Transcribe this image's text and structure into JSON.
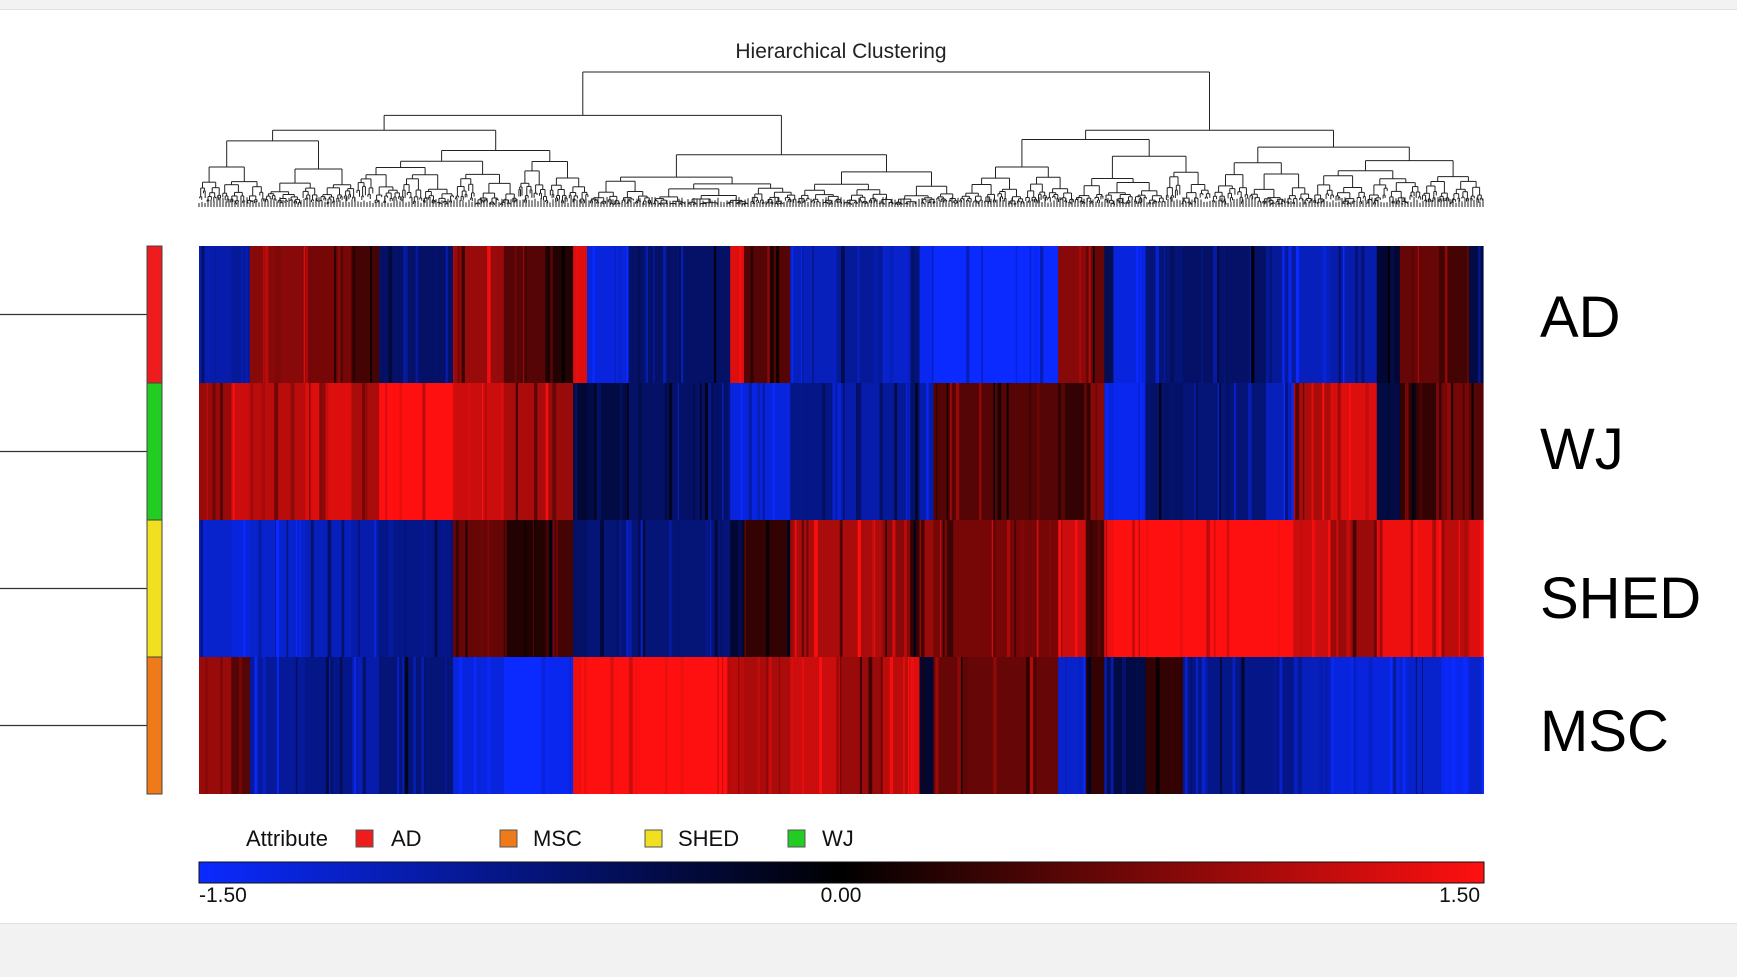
{
  "chart_data": {
    "type": "heatmap",
    "title": "Hierarchical Clustering",
    "rows": [
      "AD",
      "WJ",
      "SHED",
      "MSC"
    ],
    "row_colors": [
      "#ee1c1c",
      "#22cc22",
      "#f0e020",
      "#ee7a1a"
    ],
    "legend": {
      "title": "Attribute",
      "items": [
        {
          "label": "AD",
          "color": "#ee1c1c"
        },
        {
          "label": "MSC",
          "color": "#ee7a1a"
        },
        {
          "label": "SHED",
          "color": "#f0e020"
        },
        {
          "label": "WJ",
          "color": "#22cc22"
        }
      ]
    },
    "color_scale": {
      "min": -1.5,
      "mid": 0.0,
      "max": 1.5,
      "min_label": "-1.50",
      "mid_label": "0.00",
      "max_label": "1.50",
      "low_color": "#0a2aff",
      "mid_color": "#000000",
      "high_color": "#ff1010"
    },
    "column_blocks": [
      {
        "w": 0.7,
        "v": [
          -1.0,
          0.9,
          -1.2,
          0.9
        ]
      },
      {
        "w": 0.4,
        "v": [
          -0.9,
          1.2,
          -1.3,
          0.5
        ]
      },
      {
        "w": 1.2,
        "v": [
          0.8,
          1.1,
          -1.2,
          -0.9
        ]
      },
      {
        "w": 1.0,
        "v": [
          0.7,
          1.3,
          -1.1,
          -0.8
        ]
      },
      {
        "w": 0.6,
        "v": [
          0.4,
          1.0,
          -1.0,
          -1.0
        ]
      },
      {
        "w": 1.6,
        "v": [
          -0.6,
          1.5,
          -0.8,
          -0.7
        ]
      },
      {
        "w": 1.1,
        "v": [
          0.9,
          1.2,
          0.6,
          -1.3
        ]
      },
      {
        "w": 0.9,
        "v": [
          0.5,
          1.0,
          0.2,
          -1.5
        ]
      },
      {
        "w": 0.6,
        "v": [
          0.2,
          0.9,
          0.4,
          -1.4
        ]
      },
      {
        "w": 0.3,
        "v": [
          1.3,
          -0.3,
          -0.6,
          1.4
        ]
      },
      {
        "w": 0.9,
        "v": [
          -1.3,
          -0.4,
          -0.7,
          1.5
        ]
      },
      {
        "w": 2.2,
        "v": [
          -0.6,
          -0.6,
          -0.7,
          1.5
        ]
      },
      {
        "w": 0.3,
        "v": [
          1.3,
          -1.3,
          -0.3,
          1.1
        ]
      },
      {
        "w": 1.0,
        "v": [
          0.5,
          -1.3,
          0.3,
          1.0
        ]
      },
      {
        "w": 1.0,
        "v": [
          -1.1,
          -0.8,
          1.0,
          1.2
        ]
      },
      {
        "w": 1.0,
        "v": [
          -0.9,
          -1.0,
          1.0,
          0.9
        ]
      },
      {
        "w": 0.6,
        "v": [
          -1.2,
          -0.9,
          0.8,
          1.1
        ]
      },
      {
        "w": 0.2,
        "v": [
          -0.7,
          -0.6,
          0.3,
          1.3
        ]
      },
      {
        "w": 0.3,
        "v": [
          -1.4,
          -1.0,
          0.9,
          -0.3
        ]
      },
      {
        "w": 2.7,
        "v": [
          -1.5,
          0.5,
          0.7,
          0.6
        ]
      },
      {
        "w": 0.6,
        "v": [
          0.8,
          0.3,
          1.2,
          -1.2
        ]
      },
      {
        "w": 0.4,
        "v": [
          0.6,
          0.8,
          0.4,
          0.3
        ]
      },
      {
        "w": 0.2,
        "v": [
          -0.5,
          -1.3,
          1.4,
          -1.0
        ]
      },
      {
        "w": 0.7,
        "v": [
          -1.3,
          -1.4,
          1.5,
          -0.4
        ]
      },
      {
        "w": 0.8,
        "v": [
          -0.7,
          -0.6,
          1.5,
          0.3
        ]
      },
      {
        "w": 1.8,
        "v": [
          -0.6,
          -0.7,
          1.5,
          -0.8
        ]
      },
      {
        "w": 0.6,
        "v": [
          -0.9,
          -1.1,
          1.5,
          -0.8
        ]
      },
      {
        "w": 0.8,
        "v": [
          -1.1,
          1.0,
          1.2,
          -1.1
        ]
      },
      {
        "w": 1.0,
        "v": [
          -1.0,
          1.3,
          0.9,
          -1.3
        ]
      },
      {
        "w": 0.5,
        "v": [
          -0.3,
          -0.4,
          1.4,
          -1.3
        ]
      },
      {
        "w": 0.9,
        "v": [
          0.6,
          0.3,
          1.4,
          -1.2
        ]
      },
      {
        "w": 0.6,
        "v": [
          0.4,
          0.7,
          1.1,
          -1.4
        ]
      },
      {
        "w": 0.3,
        "v": [
          -0.4,
          0.5,
          1.3,
          -1.2
        ]
      }
    ]
  }
}
